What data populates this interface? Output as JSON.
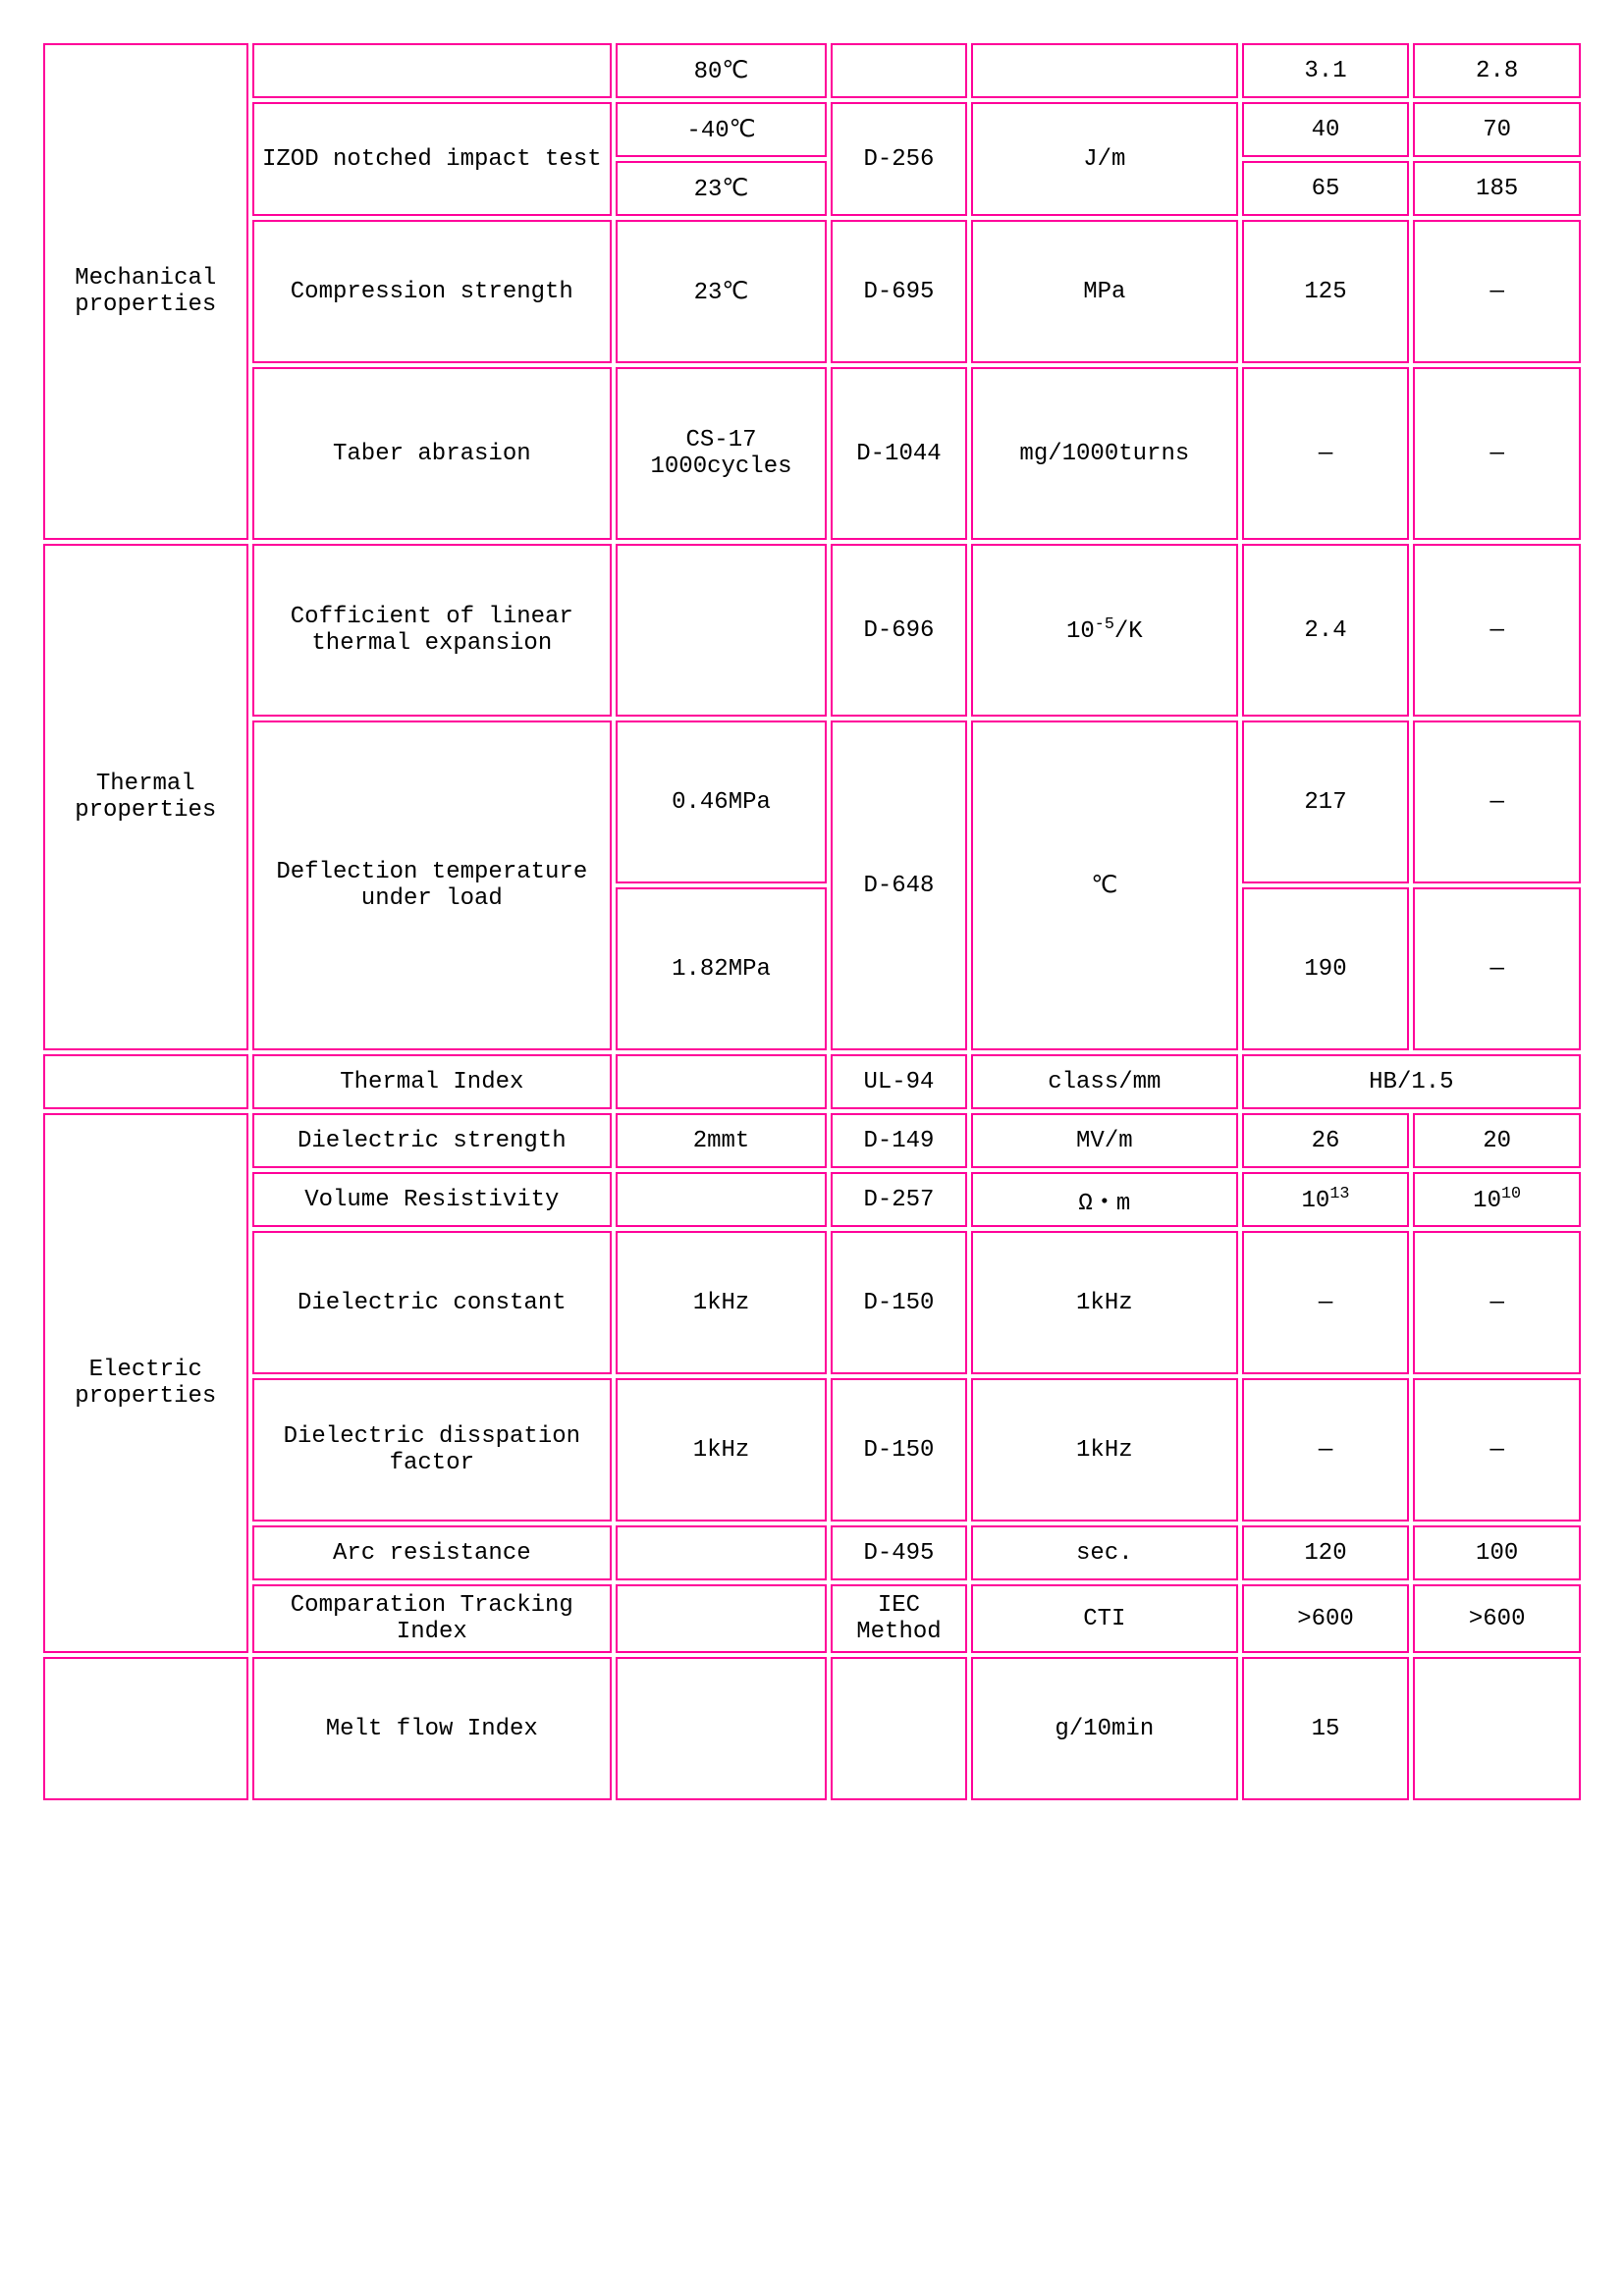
{
  "rows": {
    "r1": {
      "cat": "Mechanical properties",
      "prop": "",
      "cond": "80℃",
      "std": "",
      "unit": "",
      "v1": "3.1",
      "v2": "2.8"
    },
    "r2": {
      "prop": "IZOD notched impact test",
      "cond": "-40℃",
      "std": "D-256",
      "unit": "J/m",
      "v1": "40",
      "v2": "70"
    },
    "r3": {
      "cond": "23℃",
      "v1": "65",
      "v2": "185"
    },
    "r4": {
      "prop": "Compression strength",
      "cond": "23℃",
      "std": "D-695",
      "unit": "MPa",
      "v1": "125",
      "v2": "—"
    },
    "r5": {
      "prop": "Taber abrasion",
      "cond": "CS-17 1000cycles",
      "std": "D-1044",
      "unit": "mg/1000turns",
      "v1": "—",
      "v2": "—"
    },
    "r6": {
      "cat": "Thermal properties",
      "prop": "Cofficient of linear thermal expansion",
      "cond": "",
      "std": "D-696",
      "unit": "10⁻⁵/K",
      "v1": "2.4",
      "v2": "—"
    },
    "r7": {
      "prop": "Deflection temperature under load",
      "cond": "0.46MPa",
      "std": "D-648",
      "unit": "℃",
      "v1": "217",
      "v2": "—"
    },
    "r8": {
      "cond": "1.82MPa",
      "v1": "190",
      "v2": "—"
    },
    "r9": {
      "cat": "",
      "prop": "Thermal Index",
      "cond": "",
      "std": "UL-94",
      "unit": "class/mm",
      "v": "HB/1.5"
    },
    "r10": {
      "cat": "Electric properties",
      "prop": "Dielectric strength",
      "cond": "2mmt",
      "std": "D-149",
      "unit": "MV/m",
      "v1": "26",
      "v2": "20"
    },
    "r11": {
      "prop": "Volume Resistivity",
      "cond": "",
      "std": "D-257",
      "unit": "Ω・m",
      "v1": "10¹³",
      "v2": "10¹⁰"
    },
    "r12": {
      "prop": "Dielectric constant",
      "cond": "1kHz",
      "std": "D-150",
      "unit": "1kHz",
      "v1": "—",
      "v2": "—"
    },
    "r13": {
      "prop": "Dielectric disspation factor",
      "cond": "1kHz",
      "std": "D-150",
      "unit": "1kHz",
      "v1": "—",
      "v2": "—"
    },
    "r14": {
      "prop": "Arc resistance",
      "cond": "",
      "std": "D-495",
      "unit": "sec.",
      "v1": "120",
      "v2": "100"
    },
    "r15": {
      "prop": "Comparation Tracking Index",
      "cond": "",
      "std": "IEC Method",
      "unit": "CTI",
      "v1": ">600",
      "v2": ">600"
    },
    "r16": {
      "cat": "",
      "prop": "Melt flow Index",
      "cond": "",
      "std": "",
      "unit": "g/10min",
      "v1": "15",
      "v2": ""
    }
  }
}
